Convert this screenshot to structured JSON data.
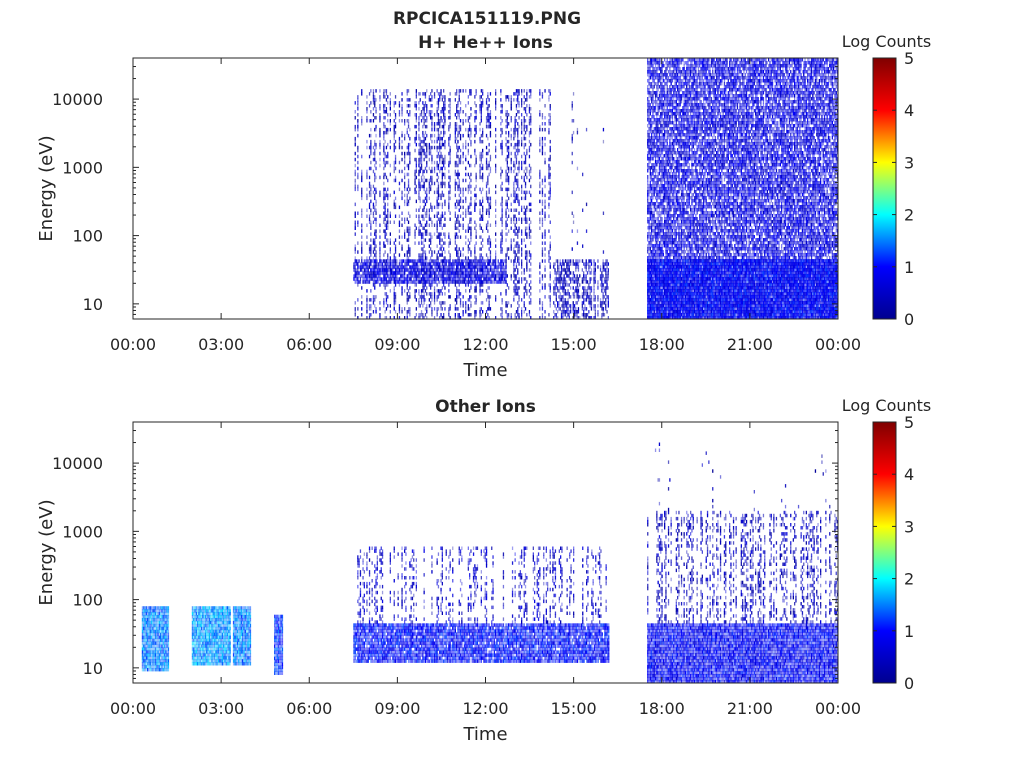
{
  "figure": {
    "title_line1": "RPCICA151119.PNG"
  },
  "colormap": {
    "name": "jet",
    "stops": [
      "#00008f",
      "#0000ff",
      "#00ffff",
      "#ffff00",
      "#ff0000",
      "#800000"
    ]
  },
  "chart_data": [
    {
      "type": "heatmap",
      "title": "H+ He++ Ions",
      "xlabel": "Time",
      "ylabel": "Energy (eV)",
      "x_ticks": [
        "00:00",
        "03:00",
        "06:00",
        "09:00",
        "12:00",
        "15:00",
        "18:00",
        "21:00",
        "00:00"
      ],
      "x_range_hours": [
        0,
        24
      ],
      "y_scale": "log",
      "y_range_eV": [
        6,
        40000
      ],
      "y_ticks": [
        {
          "value": 10,
          "label": "10"
        },
        {
          "value": 100,
          "label": "100"
        },
        {
          "value": 1000,
          "label": "1000"
        },
        {
          "value": 10000,
          "label": "10000"
        }
      ],
      "colorbar": {
        "label": "Log Counts",
        "range": [
          0,
          5
        ],
        "ticks": [
          {
            "value": 0,
            "label": "0"
          },
          {
            "value": 1,
            "label": "1"
          },
          {
            "value": 2,
            "label": "2"
          },
          {
            "value": 3,
            "label": "3"
          },
          {
            "value": 4,
            "label": "4"
          },
          {
            "value": 5,
            "label": "5"
          }
        ]
      },
      "data_blocks": [
        {
          "t_start": 7.5,
          "t_end": 14.3,
          "e_low": 6,
          "e_high": 14000,
          "density": 0.45,
          "log_counts": 0.4
        },
        {
          "t_start": 7.5,
          "t_end": 12.7,
          "e_low": 20,
          "e_high": 45,
          "density": 0.9,
          "log_counts": 0.7
        },
        {
          "t_start": 14.3,
          "t_end": 16.2,
          "e_low": 6,
          "e_high": 45,
          "density": 0.6,
          "log_counts": 0.4
        },
        {
          "t_start": 14.8,
          "t_end": 16.1,
          "e_low": 6,
          "e_high": 14000,
          "density": 0.12,
          "log_counts": 0.3
        },
        {
          "t_start": 17.5,
          "t_end": 24.0,
          "e_low": 6,
          "e_high": 40000,
          "density": 0.85,
          "log_counts": 0.7
        },
        {
          "t_start": 17.5,
          "t_end": 24.0,
          "e_low": 6,
          "e_high": 45,
          "density": 1.0,
          "log_counts": 0.95
        }
      ]
    },
    {
      "type": "heatmap",
      "title": "Other Ions",
      "xlabel": "Time",
      "ylabel": "Energy (eV)",
      "x_ticks": [
        "00:00",
        "03:00",
        "06:00",
        "09:00",
        "12:00",
        "15:00",
        "18:00",
        "21:00",
        "00:00"
      ],
      "x_range_hours": [
        0,
        24
      ],
      "y_scale": "log",
      "y_range_eV": [
        6,
        40000
      ],
      "y_ticks": [
        {
          "value": 10,
          "label": "10"
        },
        {
          "value": 100,
          "label": "100"
        },
        {
          "value": 1000,
          "label": "1000"
        },
        {
          "value": 10000,
          "label": "10000"
        }
      ],
      "colorbar": {
        "label": "Log Counts",
        "range": [
          0,
          5
        ],
        "ticks": [
          {
            "value": 0,
            "label": "0"
          },
          {
            "value": 1,
            "label": "1"
          },
          {
            "value": 2,
            "label": "2"
          },
          {
            "value": 3,
            "label": "3"
          },
          {
            "value": 4,
            "label": "4"
          },
          {
            "value": 5,
            "label": "5"
          }
        ]
      },
      "data_blocks": [
        {
          "t_start": 0.3,
          "t_end": 1.2,
          "e_low": 9,
          "e_high": 80,
          "density": 1.0,
          "log_counts": 1.5
        },
        {
          "t_start": 2.0,
          "t_end": 3.3,
          "e_low": 11,
          "e_high": 80,
          "density": 1.0,
          "log_counts": 1.6
        },
        {
          "t_start": 3.4,
          "t_end": 4.0,
          "e_low": 11,
          "e_high": 80,
          "density": 1.0,
          "log_counts": 1.5
        },
        {
          "t_start": 4.8,
          "t_end": 5.1,
          "e_low": 8,
          "e_high": 60,
          "density": 1.0,
          "log_counts": 1.2
        },
        {
          "t_start": 7.5,
          "t_end": 16.2,
          "e_low": 12,
          "e_high": 45,
          "density": 0.95,
          "log_counts": 1.0
        },
        {
          "t_start": 7.5,
          "t_end": 16.2,
          "e_low": 45,
          "e_high": 600,
          "density": 0.35,
          "log_counts": 0.5
        },
        {
          "t_start": 17.5,
          "t_end": 24.0,
          "e_low": 6,
          "e_high": 45,
          "density": 1.0,
          "log_counts": 0.9
        },
        {
          "t_start": 17.5,
          "t_end": 24.0,
          "e_low": 45,
          "e_high": 2000,
          "density": 0.4,
          "log_counts": 0.4
        },
        {
          "t_start": 17.5,
          "t_end": 24.0,
          "e_low": 2000,
          "e_high": 20000,
          "density": 0.05,
          "log_counts": 0.3
        }
      ]
    }
  ]
}
